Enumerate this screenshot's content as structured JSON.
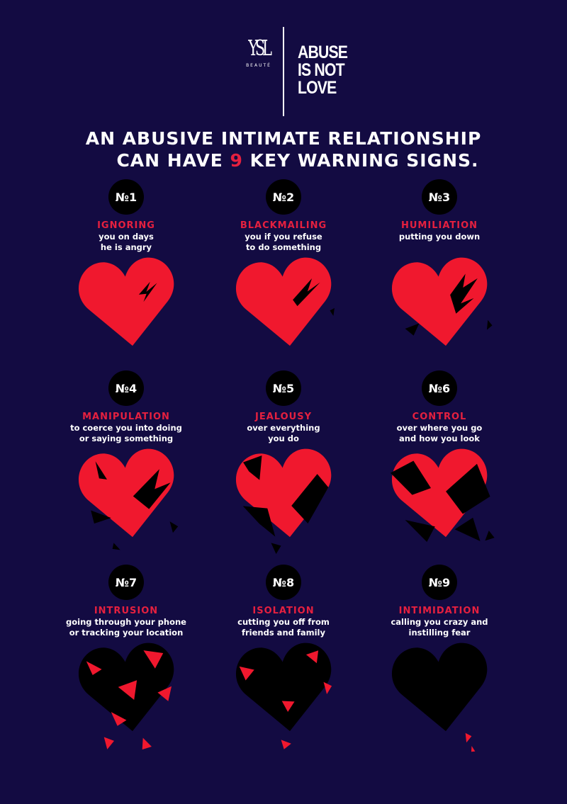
{
  "brand": {
    "logo_text": "YSL",
    "logo_sub": "BEAUTÉ"
  },
  "campaign": {
    "lines": [
      "ABUSE",
      "IS NOT",
      "LOVE"
    ]
  },
  "headline": {
    "line1": "AN ABUSIVE INTIMATE RELATIONSHIP",
    "line2_pre": "CAN HAVE ",
    "line2_number": "9",
    "line2_post": " KEY WARNING SIGNS."
  },
  "colors": {
    "background": "#130b42",
    "accent": "#e5203f",
    "heart": "#f0182e",
    "crack": "#000000"
  },
  "signs": [
    {
      "number": "№1",
      "title": "IGNORING",
      "desc": "you on days\nhe is angry"
    },
    {
      "number": "№2",
      "title": "BLACKMAILING",
      "desc": "you if you refuse\nto do something"
    },
    {
      "number": "№3",
      "title": "HUMILIATION",
      "desc": "putting you down"
    },
    {
      "number": "№4",
      "title": "MANIPULATION",
      "desc": "to coerce you into doing\nor saying something"
    },
    {
      "number": "№5",
      "title": "JEALOUSY",
      "desc": "over everything\nyou do"
    },
    {
      "number": "№6",
      "title": "CONTROL",
      "desc": "over where you go\nand how you look"
    },
    {
      "number": "№7",
      "title": "INTRUSION",
      "desc": "going through your phone\nor tracking your location"
    },
    {
      "number": "№8",
      "title": "ISOLATION",
      "desc": "cutting you off from\nfriends and family"
    },
    {
      "number": "№9",
      "title": "INTIMIDATION",
      "desc": "calling you crazy and\ninstilling fear"
    }
  ]
}
